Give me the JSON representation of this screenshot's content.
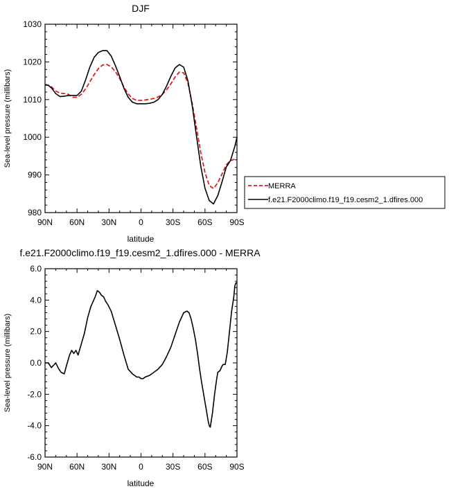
{
  "chart_data": [
    {
      "type": "line",
      "title": "DJF",
      "xlabel": "latitude",
      "ylabel": "Sea-level pressure (millibars)",
      "x_ticks": [
        "90N",
        "60N",
        "30N",
        "0",
        "30S",
        "60S",
        "90S"
      ],
      "y_ticks": [
        "980",
        "990",
        "1000",
        "1010",
        "1020",
        "1030"
      ],
      "xlim": [
        90,
        -90
      ],
      "ylim": [
        980,
        1030
      ],
      "grid": false,
      "legend_position": "right",
      "series": [
        {
          "name": "MERRA",
          "color": "#e31a1c",
          "style": "dashed",
          "x": [
            90,
            87,
            84,
            80,
            76,
            72,
            68,
            64,
            60,
            56,
            52,
            48,
            44,
            40,
            36,
            32,
            28,
            24,
            20,
            16,
            12,
            8,
            4,
            0,
            -4,
            -8,
            -12,
            -16,
            -20,
            -24,
            -28,
            -32,
            -36,
            -40,
            -44,
            -48,
            -52,
            -56,
            -60,
            -64,
            -68,
            -72,
            -76,
            -80,
            -84,
            -88,
            -90
          ],
          "y": [
            1013.9,
            1013.8,
            1013.4,
            1012.3,
            1011.7,
            1011.6,
            1011.4,
            1010.6,
            1010.6,
            1011.4,
            1012.8,
            1014.7,
            1016.6,
            1018.2,
            1019.2,
            1019.3,
            1018.7,
            1017.4,
            1015.6,
            1013.3,
            1011.5,
            1010.3,
            1009.8,
            1009.8,
            1009.9,
            1010.1,
            1010.3,
            1010.7,
            1011.4,
            1012.6,
            1014.2,
            1016.0,
            1017.3,
            1017.1,
            1014.4,
            1009.0,
            1002.6,
            996.0,
            990.7,
            987.2,
            986.4,
            987.9,
            990.3,
            992.7,
            993.8,
            994.2,
            994.5
          ]
        },
        {
          "name": "f.e21.F2000climo.f19_f19.cesm2_1.dfires.000",
          "color": "#000000",
          "style": "solid",
          "x": [
            90,
            87,
            84,
            80,
            76,
            72,
            68,
            64,
            60,
            56,
            52,
            48,
            44,
            40,
            36,
            32,
            28,
            24,
            20,
            16,
            12,
            8,
            4,
            0,
            -4,
            -8,
            -12,
            -16,
            -20,
            -24,
            -28,
            -32,
            -36,
            -40,
            -44,
            -48,
            -52,
            -56,
            -60,
            -64,
            -68,
            -72,
            -76,
            -80,
            -84,
            -88,
            -90
          ],
          "y": [
            1013.9,
            1013.8,
            1013.1,
            1011.6,
            1010.8,
            1010.9,
            1011.1,
            1011.1,
            1011.1,
            1012.2,
            1015.2,
            1018.6,
            1021.2,
            1022.5,
            1023.0,
            1023.0,
            1021.6,
            1019.0,
            1016.1,
            1013.0,
            1010.6,
            1009.3,
            1008.9,
            1008.9,
            1008.9,
            1009.0,
            1009.3,
            1010.0,
            1011.4,
            1013.6,
            1016.2,
            1018.4,
            1019.3,
            1018.6,
            1015.0,
            1008.4,
            1000.4,
            992.4,
            986.5,
            983.2,
            982.3,
            984.5,
            988.2,
            992.1,
            993.9,
            997.6,
            1000.0
          ]
        }
      ]
    },
    {
      "type": "line",
      "title": "f.e21.F2000climo.f19_f19.cesm2_1.dfires.000 - MERRA",
      "xlabel": "latitude",
      "ylabel": "Sea-level pressure (millibars)",
      "x_ticks": [
        "90N",
        "60N",
        "30N",
        "0",
        "30S",
        "60S",
        "90S"
      ],
      "y_ticks": [
        "-6.0",
        "-4.0",
        "-2.0",
        "0.0",
        "2.0",
        "4.0",
        "6.0"
      ],
      "xlim": [
        90,
        -90
      ],
      "ylim": [
        -6,
        6
      ],
      "grid": false,
      "series": [
        {
          "color": "#000000",
          "style": "solid",
          "x": [
            90,
            87,
            84,
            80,
            77,
            75,
            72,
            70,
            67,
            65,
            63,
            61,
            59,
            56,
            53,
            50,
            47,
            45,
            43,
            41,
            39,
            37,
            35,
            33,
            31,
            28,
            24,
            20,
            16,
            12,
            8,
            4,
            2,
            0,
            -2,
            -4,
            -8,
            -12,
            -16,
            -20,
            -24,
            -28,
            -32,
            -36,
            -40,
            -43,
            -45,
            -47,
            -49,
            -51,
            -53,
            -55,
            -57,
            -59,
            -61,
            -63,
            -64,
            -65,
            -67,
            -69,
            -71,
            -72,
            -74,
            -76,
            -77,
            -79,
            -81,
            -83,
            -85,
            -87,
            -88,
            -89,
            -90
          ],
          "y": [
            0.0,
            0.0,
            -0.3,
            0.0,
            -0.4,
            -0.6,
            -0.7,
            -0.2,
            0.5,
            0.8,
            0.6,
            0.8,
            0.5,
            1.2,
            1.9,
            2.9,
            3.6,
            3.9,
            4.2,
            4.6,
            4.5,
            4.3,
            4.2,
            3.9,
            3.7,
            3.3,
            2.4,
            1.5,
            0.5,
            -0.4,
            -0.7,
            -0.9,
            -0.9,
            -1.0,
            -1.0,
            -0.9,
            -0.8,
            -0.6,
            -0.4,
            -0.1,
            0.4,
            1.0,
            1.8,
            2.6,
            3.2,
            3.3,
            3.2,
            2.8,
            2.2,
            1.5,
            0.6,
            -0.4,
            -1.3,
            -2.1,
            -2.9,
            -3.7,
            -4.0,
            -4.1,
            -3.2,
            -2.0,
            -1.0,
            -0.6,
            -0.5,
            -0.2,
            -0.1,
            -0.1,
            0.7,
            2.0,
            3.3,
            4.2,
            4.9,
            5.1,
            5.1
          ]
        }
      ]
    }
  ],
  "legend": {
    "items": [
      {
        "label": "MERRA",
        "color": "#e31a1c",
        "style": "dashed"
      },
      {
        "label": "f.e21.F2000climo.f19_f19.cesm2_1.dfires.000",
        "color": "#000000",
        "style": "solid"
      }
    ]
  }
}
